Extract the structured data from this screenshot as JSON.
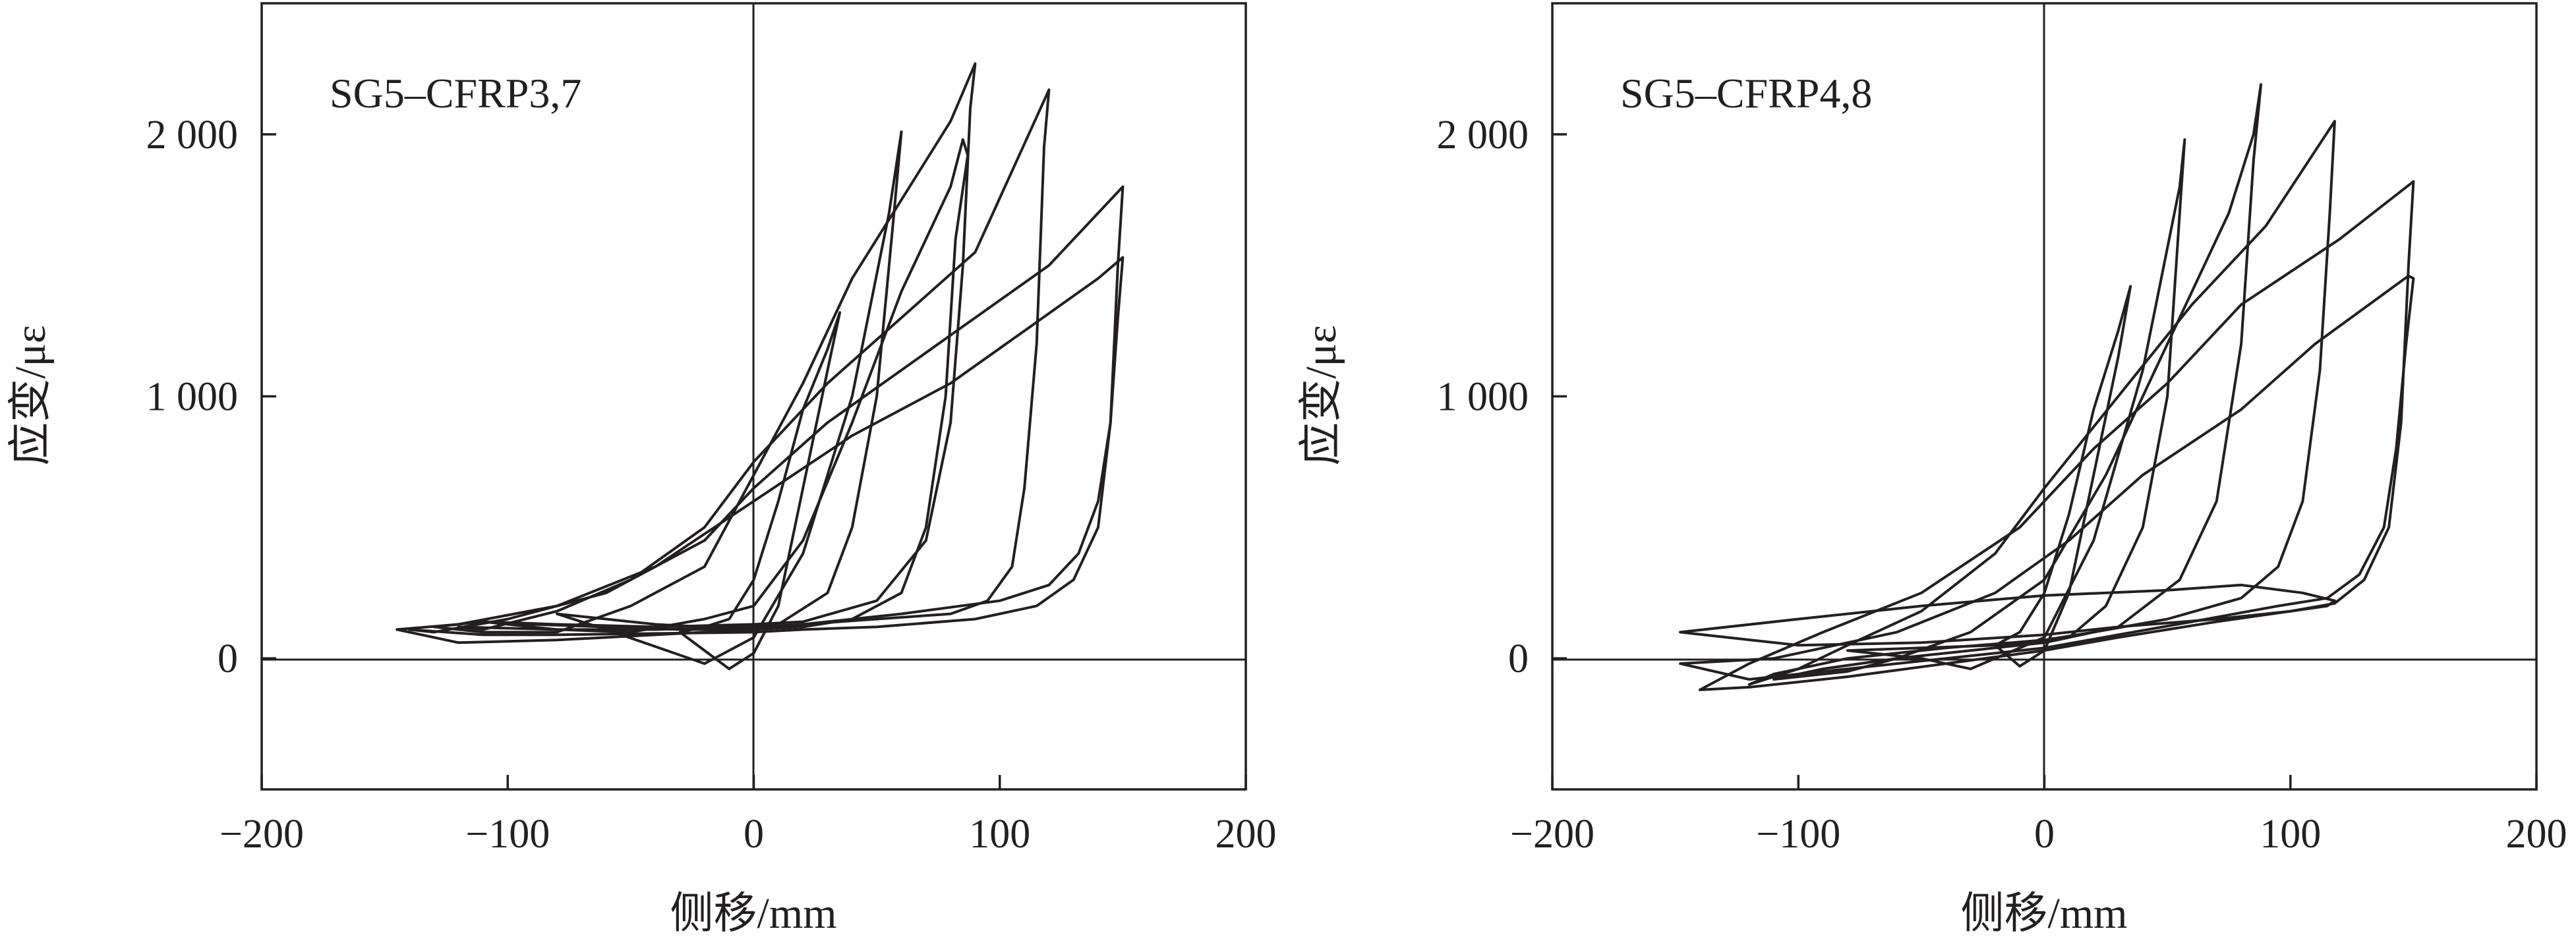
{
  "chart_data": [
    {
      "type": "line",
      "title": "SG5–CFRP3,7",
      "xlabel": "侧移/mm",
      "ylabel": "应变/με",
      "xlim": [
        -200,
        200
      ],
      "ylim": [
        -500,
        2500
      ],
      "xticks": [
        -200,
        -100,
        0,
        100,
        200
      ],
      "xtick_labels": [
        "−200",
        "−100",
        "0",
        "100",
        "200"
      ],
      "yticks": [
        0,
        1000,
        2000
      ],
      "ytick_labels": [
        "0",
        "1 000",
        "2 000"
      ],
      "grid": false,
      "series": [
        {
          "x": [
            -10,
            0,
            10,
            20,
            30,
            35,
            30,
            20,
            10,
            0,
            -10,
            -20,
            -30,
            -10
          ],
          "y": [
            -40,
            20,
            200,
            650,
            1100,
            1320,
            1180,
            950,
            600,
            300,
            150,
            120,
            100,
            -40
          ]
        },
        {
          "x": [
            -20,
            0,
            20,
            40,
            55,
            60,
            57,
            50,
            40,
            30,
            10,
            0,
            -20,
            -40,
            -60,
            -80,
            -60,
            -20
          ],
          "y": [
            -20,
            80,
            400,
            1000,
            1700,
            2010,
            1700,
            1000,
            500,
            250,
            130,
            120,
            120,
            130,
            150,
            170,
            110,
            -20
          ]
        },
        {
          "x": [
            -50,
            -20,
            0,
            20,
            40,
            60,
            80,
            85,
            87,
            82,
            78,
            70,
            60,
            40,
            20,
            0,
            -30,
            -60,
            -90,
            -110,
            -80,
            -50
          ],
          "y": [
            100,
            150,
            200,
            450,
            900,
            1400,
            1800,
            1980,
            1920,
            1600,
            1000,
            500,
            250,
            150,
            120,
            110,
            110,
            120,
            130,
            140,
            110,
            100
          ]
        },
        {
          "x": [
            -80,
            -50,
            -20,
            0,
            20,
            40,
            60,
            80,
            90,
            88,
            85,
            80,
            70,
            50,
            20,
            0,
            -40,
            -80,
            -110,
            -130,
            -110,
            -80
          ],
          "y": [
            100,
            200,
            350,
            700,
            1050,
            1450,
            1750,
            2050,
            2270,
            2100,
            1500,
            900,
            450,
            220,
            140,
            130,
            120,
            130,
            140,
            120,
            100,
            100
          ]
        },
        {
          "x": [
            -110,
            -80,
            -50,
            -20,
            0,
            30,
            60,
            90,
            120,
            118,
            115,
            110,
            105,
            95,
            80,
            50,
            20,
            0,
            -40,
            -80,
            -120,
            -110
          ],
          "y": [
            110,
            180,
            300,
            500,
            750,
            1050,
            1300,
            1550,
            2170,
            1950,
            1200,
            650,
            350,
            220,
            170,
            150,
            130,
            120,
            110,
            110,
            120,
            110
          ]
        },
        {
          "x": [
            -130,
            -100,
            -60,
            -20,
            0,
            30,
            60,
            90,
            120,
            150,
            148,
            145,
            140,
            130,
            115,
            90,
            50,
            20,
            0,
            -40,
            -80,
            -110,
            -140,
            -130
          ],
          "y": [
            100,
            150,
            250,
            450,
            650,
            900,
            1100,
            1300,
            1500,
            1800,
            1500,
            900,
            500,
            300,
            200,
            150,
            120,
            110,
            100,
            95,
            90,
            90,
            110,
            100
          ]
        },
        {
          "x": [
            -145,
            -120,
            -80,
            -40,
            0,
            40,
            80,
            110,
            140,
            150,
            148,
            145,
            140,
            132,
            120,
            100,
            60,
            20,
            0,
            -40,
            -80,
            -120,
            -145
          ],
          "y": [
            110,
            130,
            200,
            350,
            600,
            850,
            1050,
            1250,
            1450,
            1530,
            1300,
            900,
            600,
            400,
            280,
            220,
            170,
            130,
            110,
            90,
            70,
            60,
            110
          ]
        }
      ]
    },
    {
      "type": "line",
      "title": "SG5–CFRP4,8",
      "xlabel": "侧移/mm",
      "ylabel": "应变/με",
      "xlim": [
        -200,
        200
      ],
      "ylim": [
        -500,
        2500
      ],
      "xticks": [
        -200,
        -100,
        0,
        100,
        200
      ],
      "xtick_labels": [
        "−200",
        "−100",
        "0",
        "100",
        "200"
      ],
      "yticks": [
        0,
        1000,
        2000
      ],
      "ytick_labels": [
        "0",
        "1 000",
        "2 000"
      ],
      "grid": false,
      "series": [
        {
          "x": [
            -10,
            0,
            10,
            20,
            30,
            35,
            30,
            20,
            10,
            0,
            -10,
            -20,
            -10
          ],
          "y": [
            -30,
            30,
            250,
            700,
            1150,
            1420,
            1250,
            950,
            550,
            250,
            100,
            50,
            -30
          ]
        },
        {
          "x": [
            -30,
            0,
            20,
            40,
            55,
            57,
            55,
            50,
            40,
            25,
            10,
            0,
            -20,
            -50,
            -80,
            -50,
            -30
          ],
          "y": [
            -40,
            80,
            450,
            1100,
            1800,
            1980,
            1700,
            1000,
            500,
            200,
            80,
            60,
            50,
            40,
            30,
            0,
            -40
          ]
        },
        {
          "x": [
            -60,
            -30,
            0,
            25,
            50,
            75,
            85,
            88,
            85,
            80,
            70,
            55,
            30,
            0,
            -30,
            -60,
            -90,
            -110,
            -80,
            -60
          ],
          "y": [
            0,
            100,
            300,
            700,
            1200,
            1700,
            2000,
            2190,
            1900,
            1200,
            600,
            300,
            120,
            60,
            30,
            0,
            -40,
            -80,
            -50,
            0
          ]
        },
        {
          "x": [
            -80,
            -50,
            -20,
            0,
            30,
            60,
            90,
            118,
            116,
            112,
            105,
            95,
            80,
            50,
            20,
            0,
            -40,
            -80,
            -110,
            -120,
            -100,
            -80
          ],
          "y": [
            50,
            180,
            400,
            650,
            1000,
            1350,
            1650,
            2050,
            1700,
            1100,
            600,
            350,
            230,
            150,
            100,
            70,
            40,
            0,
            -60,
            -100,
            -40,
            50
          ]
        },
        {
          "x": [
            -120,
            -90,
            -50,
            -10,
            20,
            50,
            80,
            120,
            150,
            148,
            145,
            140,
            130,
            118,
            100,
            70,
            30,
            0,
            -40,
            -80,
            -120,
            -140,
            -120
          ],
          "y": [
            -20,
            100,
            250,
            500,
            800,
            1050,
            1350,
            1600,
            1820,
            1500,
            900,
            500,
            300,
            210,
            180,
            140,
            80,
            30,
            -20,
            -70,
            -110,
            -120,
            -20
          ]
        },
        {
          "x": [
            -148,
            -110,
            -60,
            -20,
            10,
            40,
            80,
            110,
            148,
            150,
            147,
            143,
            138,
            128,
            115,
            95,
            60,
            30,
            0,
            -40,
            -80,
            -120,
            -148
          ],
          "y": [
            -20,
            0,
            100,
            250,
            450,
            700,
            950,
            1200,
            1460,
            1450,
            1200,
            800,
            500,
            320,
            230,
            200,
            140,
            90,
            40,
            0,
            -40,
            -80,
            -20
          ]
        },
        {
          "x": [
            -148,
            -100,
            -50,
            0,
            50,
            80,
            105,
            118,
            115,
            100,
            70,
            30,
            0,
            -50,
            -100,
            -148
          ],
          "y": [
            100,
            150,
            200,
            240,
            260,
            280,
            250,
            220,
            200,
            180,
            150,
            120,
            90,
            60,
            50,
            100
          ]
        }
      ]
    }
  ]
}
